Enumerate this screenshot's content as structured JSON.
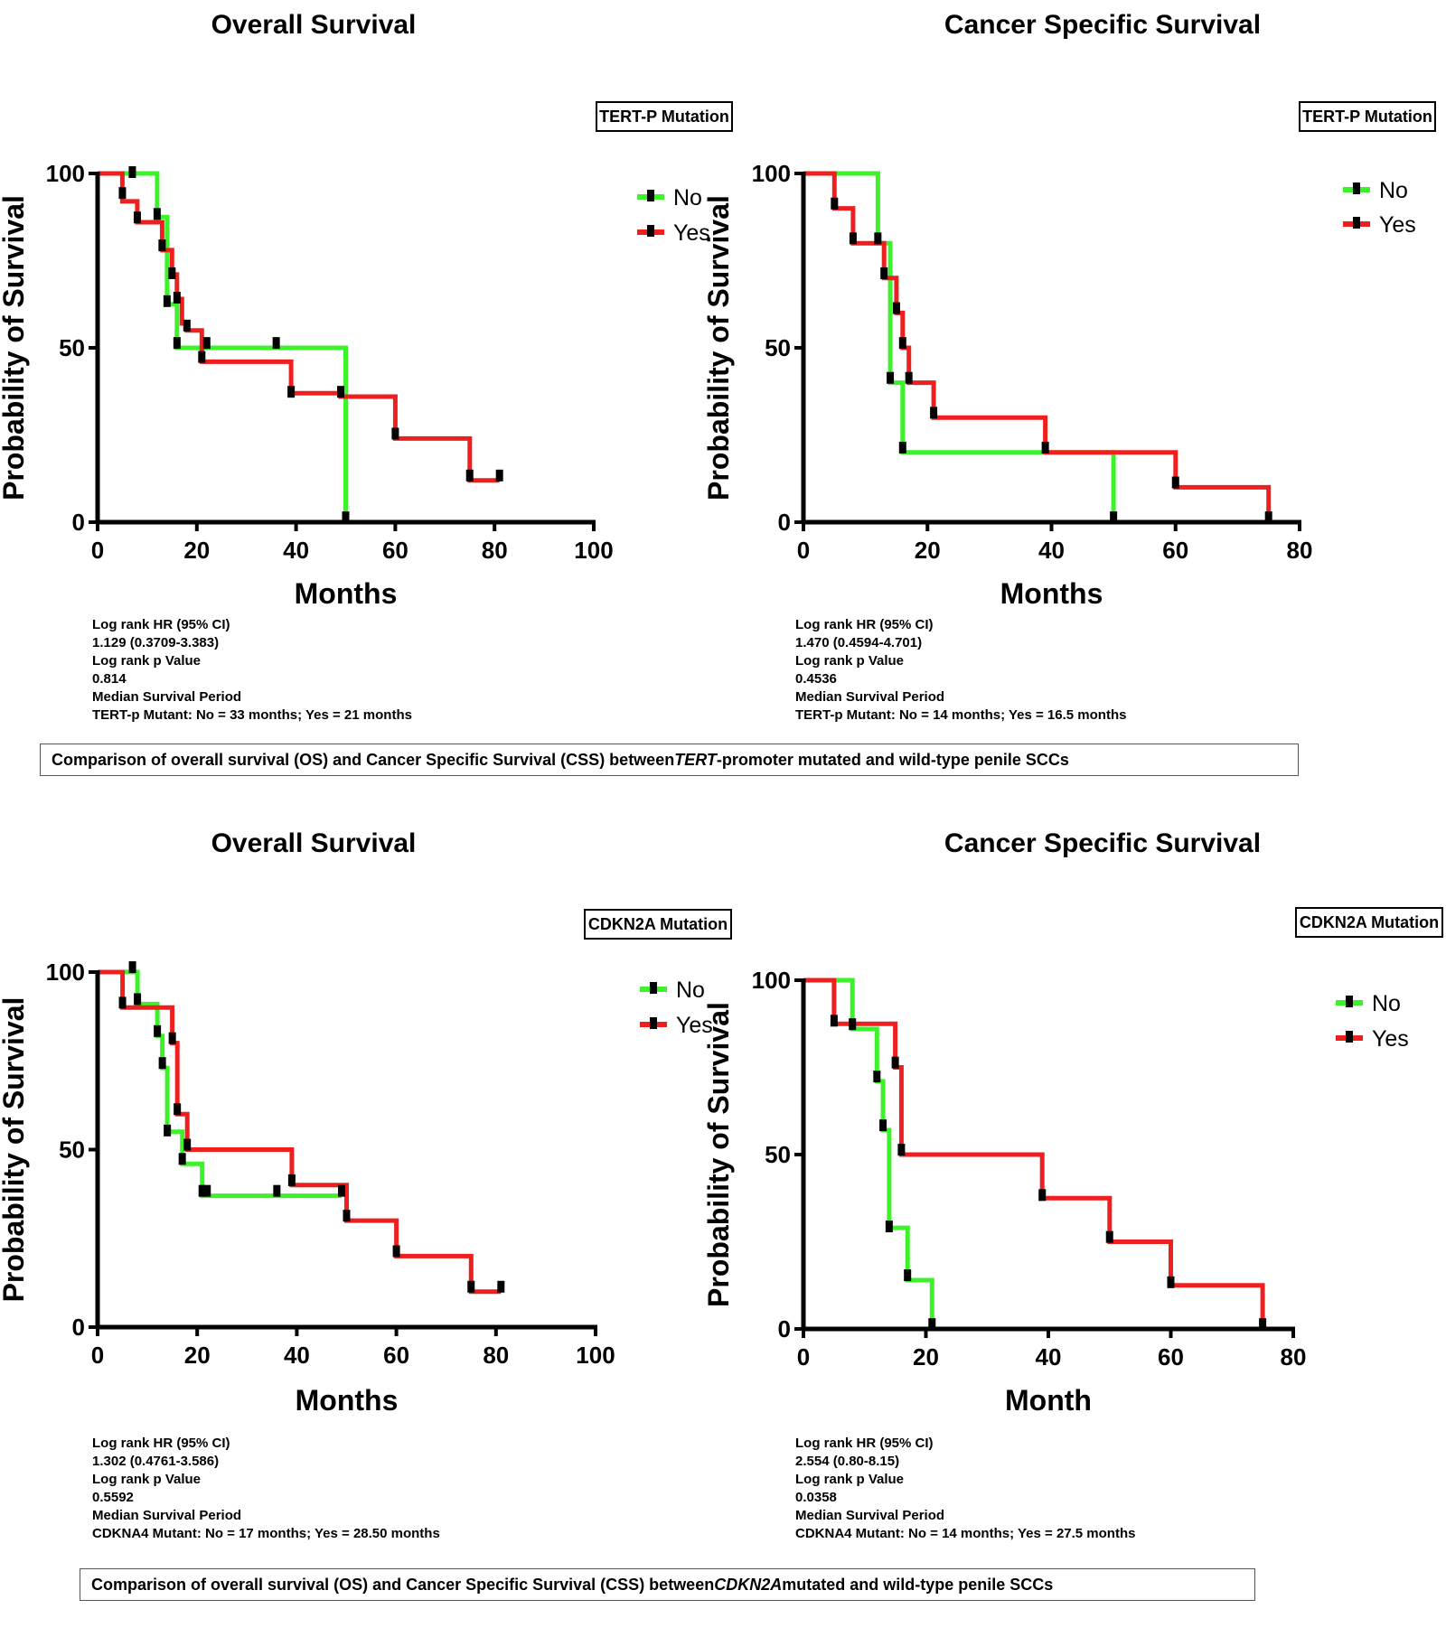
{
  "colors": {
    "no": "#3df22b",
    "yes": "#ee1f1f",
    "axis": "#000000"
  },
  "captions": [
    {
      "pre": "Comparison of overall survival (OS) and Cancer Specific Survival (CSS) between ",
      "gene": "TERT",
      "post": "-promoter mutated and wild-type penile SCCs"
    },
    {
      "pre": "Comparison of overall survival (OS) and Cancer Specific Survival (CSS) between ",
      "gene": "CDKN2A",
      "post": " mutated and wild-type penile SCCs"
    }
  ],
  "chart_data": [
    {
      "type": "line",
      "title": "Overall Survival",
      "group_label": "TERT-P Mutation",
      "xlabel": "Months",
      "ylabel": "Probability of Survival",
      "xlim": [
        0,
        100
      ],
      "ylim": [
        0,
        100
      ],
      "xticks": [
        0,
        20,
        40,
        60,
        80,
        100
      ],
      "yticks": [
        0,
        50,
        100
      ],
      "legend": [
        "No",
        "Yes"
      ],
      "series": [
        {
          "name": "No",
          "steps": [
            [
              0,
              100
            ],
            [
              12,
              100
            ],
            [
              12,
              87.5
            ],
            [
              14,
              87.5
            ],
            [
              14,
              62.5
            ],
            [
              16,
              62.5
            ],
            [
              16,
              50
            ],
            [
              50,
              50
            ],
            [
              50,
              0
            ]
          ],
          "censored": [
            [
              7,
              100
            ],
            [
              12,
              88
            ],
            [
              14,
              63
            ],
            [
              16,
              51
            ],
            [
              36,
              51
            ],
            [
              50,
              1
            ]
          ]
        },
        {
          "name": "Yes",
          "steps": [
            [
              0,
              100
            ],
            [
              5,
              100
            ],
            [
              5,
              92
            ],
            [
              8,
              92
            ],
            [
              8,
              86
            ],
            [
              13,
              86
            ],
            [
              13,
              78
            ],
            [
              15,
              78
            ],
            [
              15,
              71
            ],
            [
              16,
              71
            ],
            [
              16,
              64
            ],
            [
              17,
              64
            ],
            [
              17,
              57
            ],
            [
              18,
              57
            ],
            [
              18,
              55
            ],
            [
              21,
              55
            ],
            [
              21,
              46
            ],
            [
              39,
              46
            ],
            [
              39,
              37
            ],
            [
              49,
              37
            ],
            [
              49,
              36
            ],
            [
              60,
              36
            ],
            [
              60,
              24
            ],
            [
              75,
              24
            ],
            [
              75,
              12
            ],
            [
              81,
              12
            ]
          ],
          "censored": [
            [
              5,
              94
            ],
            [
              8,
              87
            ],
            [
              13,
              79
            ],
            [
              15,
              71
            ],
            [
              16,
              64
            ],
            [
              18,
              56
            ],
            [
              21,
              47
            ],
            [
              22,
              51
            ],
            [
              39,
              37
            ],
            [
              49,
              37
            ],
            [
              60,
              25
            ],
            [
              75,
              13
            ],
            [
              81,
              13
            ]
          ]
        }
      ],
      "stats": [
        "Log rank HR (95% CI)",
        "1.129 (0.3709-3.383)",
        "Log rank p Value",
        "0.814",
        "Median Survival Period",
        "TERT-p Mutant: No = 33 months; Yes = 21 months"
      ]
    },
    {
      "type": "line",
      "title": "Cancer Specific Survival",
      "group_label": "TERT-P Mutation",
      "xlabel": "Months",
      "ylabel": "Probability of Survival",
      "xlim": [
        0,
        80
      ],
      "ylim": [
        0,
        100
      ],
      "xticks": [
        0,
        20,
        40,
        60,
        80
      ],
      "yticks": [
        0,
        50,
        100
      ],
      "legend": [
        "No",
        "Yes"
      ],
      "series": [
        {
          "name": "No",
          "steps": [
            [
              0,
              100
            ],
            [
              12,
              100
            ],
            [
              12,
              80
            ],
            [
              14,
              80
            ],
            [
              14,
              40
            ],
            [
              16,
              40
            ],
            [
              16,
              20
            ],
            [
              50,
              20
            ],
            [
              50,
              0
            ]
          ],
          "censored": [
            [
              12,
              81
            ],
            [
              14,
              41
            ],
            [
              16,
              21
            ],
            [
              50,
              1
            ]
          ]
        },
        {
          "name": "Yes",
          "steps": [
            [
              0,
              100
            ],
            [
              5,
              100
            ],
            [
              5,
              90
            ],
            [
              8,
              90
            ],
            [
              8,
              80
            ],
            [
              13,
              80
            ],
            [
              13,
              70
            ],
            [
              15,
              70
            ],
            [
              15,
              60
            ],
            [
              16,
              60
            ],
            [
              16,
              50
            ],
            [
              17,
              50
            ],
            [
              17,
              40
            ],
            [
              21,
              40
            ],
            [
              21,
              30
            ],
            [
              39,
              30
            ],
            [
              39,
              20
            ],
            [
              60,
              20
            ],
            [
              60,
              10
            ],
            [
              75,
              10
            ],
            [
              75,
              0
            ]
          ],
          "censored": [
            [
              5,
              91
            ],
            [
              8,
              81
            ],
            [
              13,
              71
            ],
            [
              15,
              61
            ],
            [
              16,
              51
            ],
            [
              17,
              41
            ],
            [
              21,
              31
            ],
            [
              39,
              21
            ],
            [
              60,
              11
            ],
            [
              75,
              1
            ]
          ]
        }
      ],
      "stats": [
        "Log rank HR (95% CI)",
        "1.470 (0.4594-4.701)",
        "Log rank p Value",
        "0.4536",
        "Median Survival Period",
        "TERT-p Mutant: No = 14 months; Yes = 16.5 months"
      ]
    },
    {
      "type": "line",
      "title": "Overall Survival",
      "group_label": "CDKN2A Mutation",
      "xlabel": "Months",
      "ylabel": "Probability of Survival",
      "xlim": [
        0,
        100
      ],
      "ylim": [
        0,
        100
      ],
      "xticks": [
        0,
        20,
        40,
        60,
        80,
        100
      ],
      "yticks": [
        0,
        50,
        100
      ],
      "legend": [
        "No",
        "Yes"
      ],
      "series": [
        {
          "name": "No",
          "steps": [
            [
              0,
              100
            ],
            [
              8,
              100
            ],
            [
              8,
              91
            ],
            [
              12,
              91
            ],
            [
              12,
              82
            ],
            [
              13,
              82
            ],
            [
              13,
              73
            ],
            [
              14,
              73
            ],
            [
              14,
              55
            ],
            [
              17,
              55
            ],
            [
              17,
              46
            ],
            [
              21,
              46
            ],
            [
              21,
              37
            ],
            [
              49,
              37
            ]
          ],
          "censored": [
            [
              7,
              101
            ],
            [
              8,
              92
            ],
            [
              12,
              83
            ],
            [
              13,
              74
            ],
            [
              14,
              55
            ],
            [
              17,
              47
            ],
            [
              21,
              38
            ],
            [
              36,
              38
            ],
            [
              49,
              38
            ]
          ]
        },
        {
          "name": "Yes",
          "steps": [
            [
              0,
              100
            ],
            [
              5,
              100
            ],
            [
              5,
              90
            ],
            [
              15,
              90
            ],
            [
              15,
              80
            ],
            [
              16,
              80
            ],
            [
              16,
              60
            ],
            [
              18,
              60
            ],
            [
              18,
              50
            ],
            [
              39,
              50
            ],
            [
              39,
              40
            ],
            [
              50,
              40
            ],
            [
              50,
              30
            ],
            [
              60,
              30
            ],
            [
              60,
              20
            ],
            [
              75,
              20
            ],
            [
              75,
              10
            ],
            [
              81,
              10
            ]
          ],
          "censored": [
            [
              5,
              91
            ],
            [
              15,
              81
            ],
            [
              16,
              61
            ],
            [
              18,
              51
            ],
            [
              22,
              38
            ],
            [
              39,
              41
            ],
            [
              50,
              31
            ],
            [
              60,
              21
            ],
            [
              75,
              11
            ],
            [
              81,
              11
            ]
          ]
        }
      ],
      "stats": [
        "Log rank HR (95% CI)",
        "1.302 (0.4761-3.586)",
        "Log rank p Value",
        "0.5592",
        "Median Survival Period",
        "CDKNA4 Mutant: No = 17 months; Yes = 28.50 months"
      ]
    },
    {
      "type": "line",
      "title": "Cancer Specific Survival",
      "group_label": "CDKN2A Mutation",
      "xlabel": "Month",
      "ylabel": "Probability of Survival",
      "xlim": [
        0,
        80
      ],
      "ylim": [
        0,
        100
      ],
      "xticks": [
        0,
        20,
        40,
        60,
        80
      ],
      "yticks": [
        0,
        50,
        100
      ],
      "legend": [
        "No",
        "Yes"
      ],
      "series": [
        {
          "name": "No",
          "steps": [
            [
              0,
              100
            ],
            [
              8,
              100
            ],
            [
              8,
              86
            ],
            [
              12,
              86
            ],
            [
              12,
              71
            ],
            [
              13,
              71
            ],
            [
              13,
              57
            ],
            [
              14,
              57
            ],
            [
              14,
              29
            ],
            [
              17,
              29
            ],
            [
              17,
              14
            ],
            [
              21,
              14
            ],
            [
              21,
              0
            ]
          ],
          "censored": [
            [
              8,
              87
            ],
            [
              12,
              72
            ],
            [
              13,
              58
            ],
            [
              14,
              29
            ],
            [
              17,
              15
            ],
            [
              21,
              1
            ]
          ]
        },
        {
          "name": "Yes",
          "steps": [
            [
              0,
              100
            ],
            [
              5,
              100
            ],
            [
              5,
              87.5
            ],
            [
              15,
              87.5
            ],
            [
              15,
              75
            ],
            [
              16,
              75
            ],
            [
              16,
              50
            ],
            [
              39,
              50
            ],
            [
              39,
              37.5
            ],
            [
              50,
              37.5
            ],
            [
              50,
              25
            ],
            [
              60,
              25
            ],
            [
              60,
              12.5
            ],
            [
              75,
              12.5
            ],
            [
              75,
              0
            ]
          ],
          "censored": [
            [
              5,
              88
            ],
            [
              15,
              76
            ],
            [
              16,
              51
            ],
            [
              39,
              38
            ],
            [
              50,
              26
            ],
            [
              60,
              13
            ],
            [
              75,
              1
            ]
          ]
        }
      ],
      "stats": [
        "Log rank HR (95% CI)",
        "2.554 (0.80-8.15)",
        "Log rank p Value",
        "0.0358",
        "Median Survival Period",
        "CDKNA4 Mutant: No = 14 months; Yes = 27.5 months"
      ]
    }
  ]
}
